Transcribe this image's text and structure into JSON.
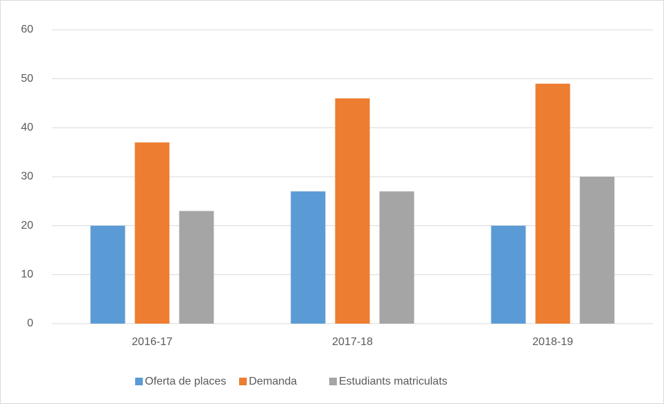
{
  "chart_data": {
    "type": "bar",
    "categories": [
      "2016-17",
      "2017-18",
      "2018-19"
    ],
    "series": [
      {
        "name": "Oferta de places",
        "color": "#5b9bd5",
        "values": [
          20,
          27,
          20
        ]
      },
      {
        "name": "Demanda",
        "color": "#ed7d31",
        "values": [
          37,
          46,
          49
        ]
      },
      {
        "name": "Estudiants matriculats",
        "color": "#a5a5a5",
        "values": [
          23,
          27,
          30
        ]
      }
    ],
    "ylim": [
      0,
      60
    ],
    "yticks": [
      0,
      10,
      20,
      30,
      40,
      50,
      60
    ],
    "grid": true,
    "legend": "bottom"
  }
}
